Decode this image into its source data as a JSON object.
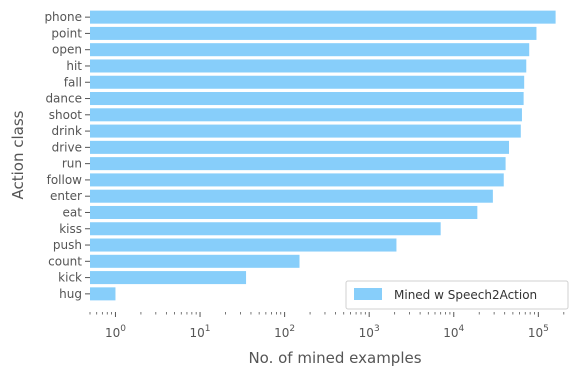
{
  "chart_data": {
    "type": "bar",
    "orientation": "horizontal",
    "x_scale": "log",
    "xlim": [
      0.5,
      250000
    ],
    "categories": [
      "phone",
      "point",
      "open",
      "hit",
      "fall",
      "dance",
      "shoot",
      "drink",
      "drive",
      "run",
      "follow",
      "enter",
      "eat",
      "kiss",
      "push",
      "count",
      "kick",
      "hug"
    ],
    "series": [
      {
        "name": "Mined w Speech2Action",
        "values": [
          160000,
          95000,
          78000,
          72000,
          68000,
          67000,
          64000,
          62000,
          45000,
          41000,
          39000,
          29000,
          19000,
          7000,
          2100,
          150,
          35,
          1
        ]
      }
    ],
    "xticks": [
      {
        "base": "10",
        "exp": "0"
      },
      {
        "base": "10",
        "exp": "1"
      },
      {
        "base": "10",
        "exp": "2"
      },
      {
        "base": "10",
        "exp": "3"
      },
      {
        "base": "10",
        "exp": "4"
      },
      {
        "base": "10",
        "exp": "5"
      }
    ],
    "xlabel": "No. of mined examples",
    "ylabel": "Action class",
    "legend_position": "bottom-right",
    "grid": false,
    "colors": {
      "bar": "#87CEFA",
      "text": "#555555"
    }
  }
}
